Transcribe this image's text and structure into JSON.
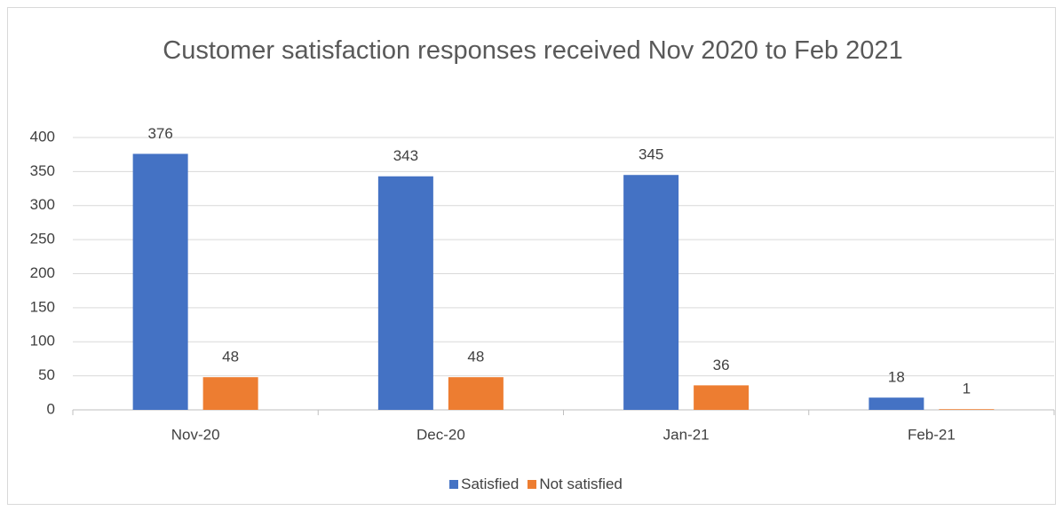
{
  "chart_data": {
    "type": "bar",
    "title": "Customer satisfaction responses received Nov 2020 to Feb 2021",
    "categories": [
      "Nov-20",
      "Dec-20",
      "Jan-21",
      "Feb-21"
    ],
    "series": [
      {
        "name": "Satisfied",
        "color": "#4472c4",
        "values": [
          376,
          343,
          345,
          18
        ]
      },
      {
        "name": "Not satisfied",
        "color": "#ed7d31",
        "values": [
          48,
          48,
          36,
          1
        ]
      }
    ],
    "ylim": [
      0,
      400
    ],
    "yticks": [
      0,
      50,
      100,
      150,
      200,
      250,
      300,
      350,
      400
    ],
    "grid": true,
    "legend": "bottom"
  }
}
